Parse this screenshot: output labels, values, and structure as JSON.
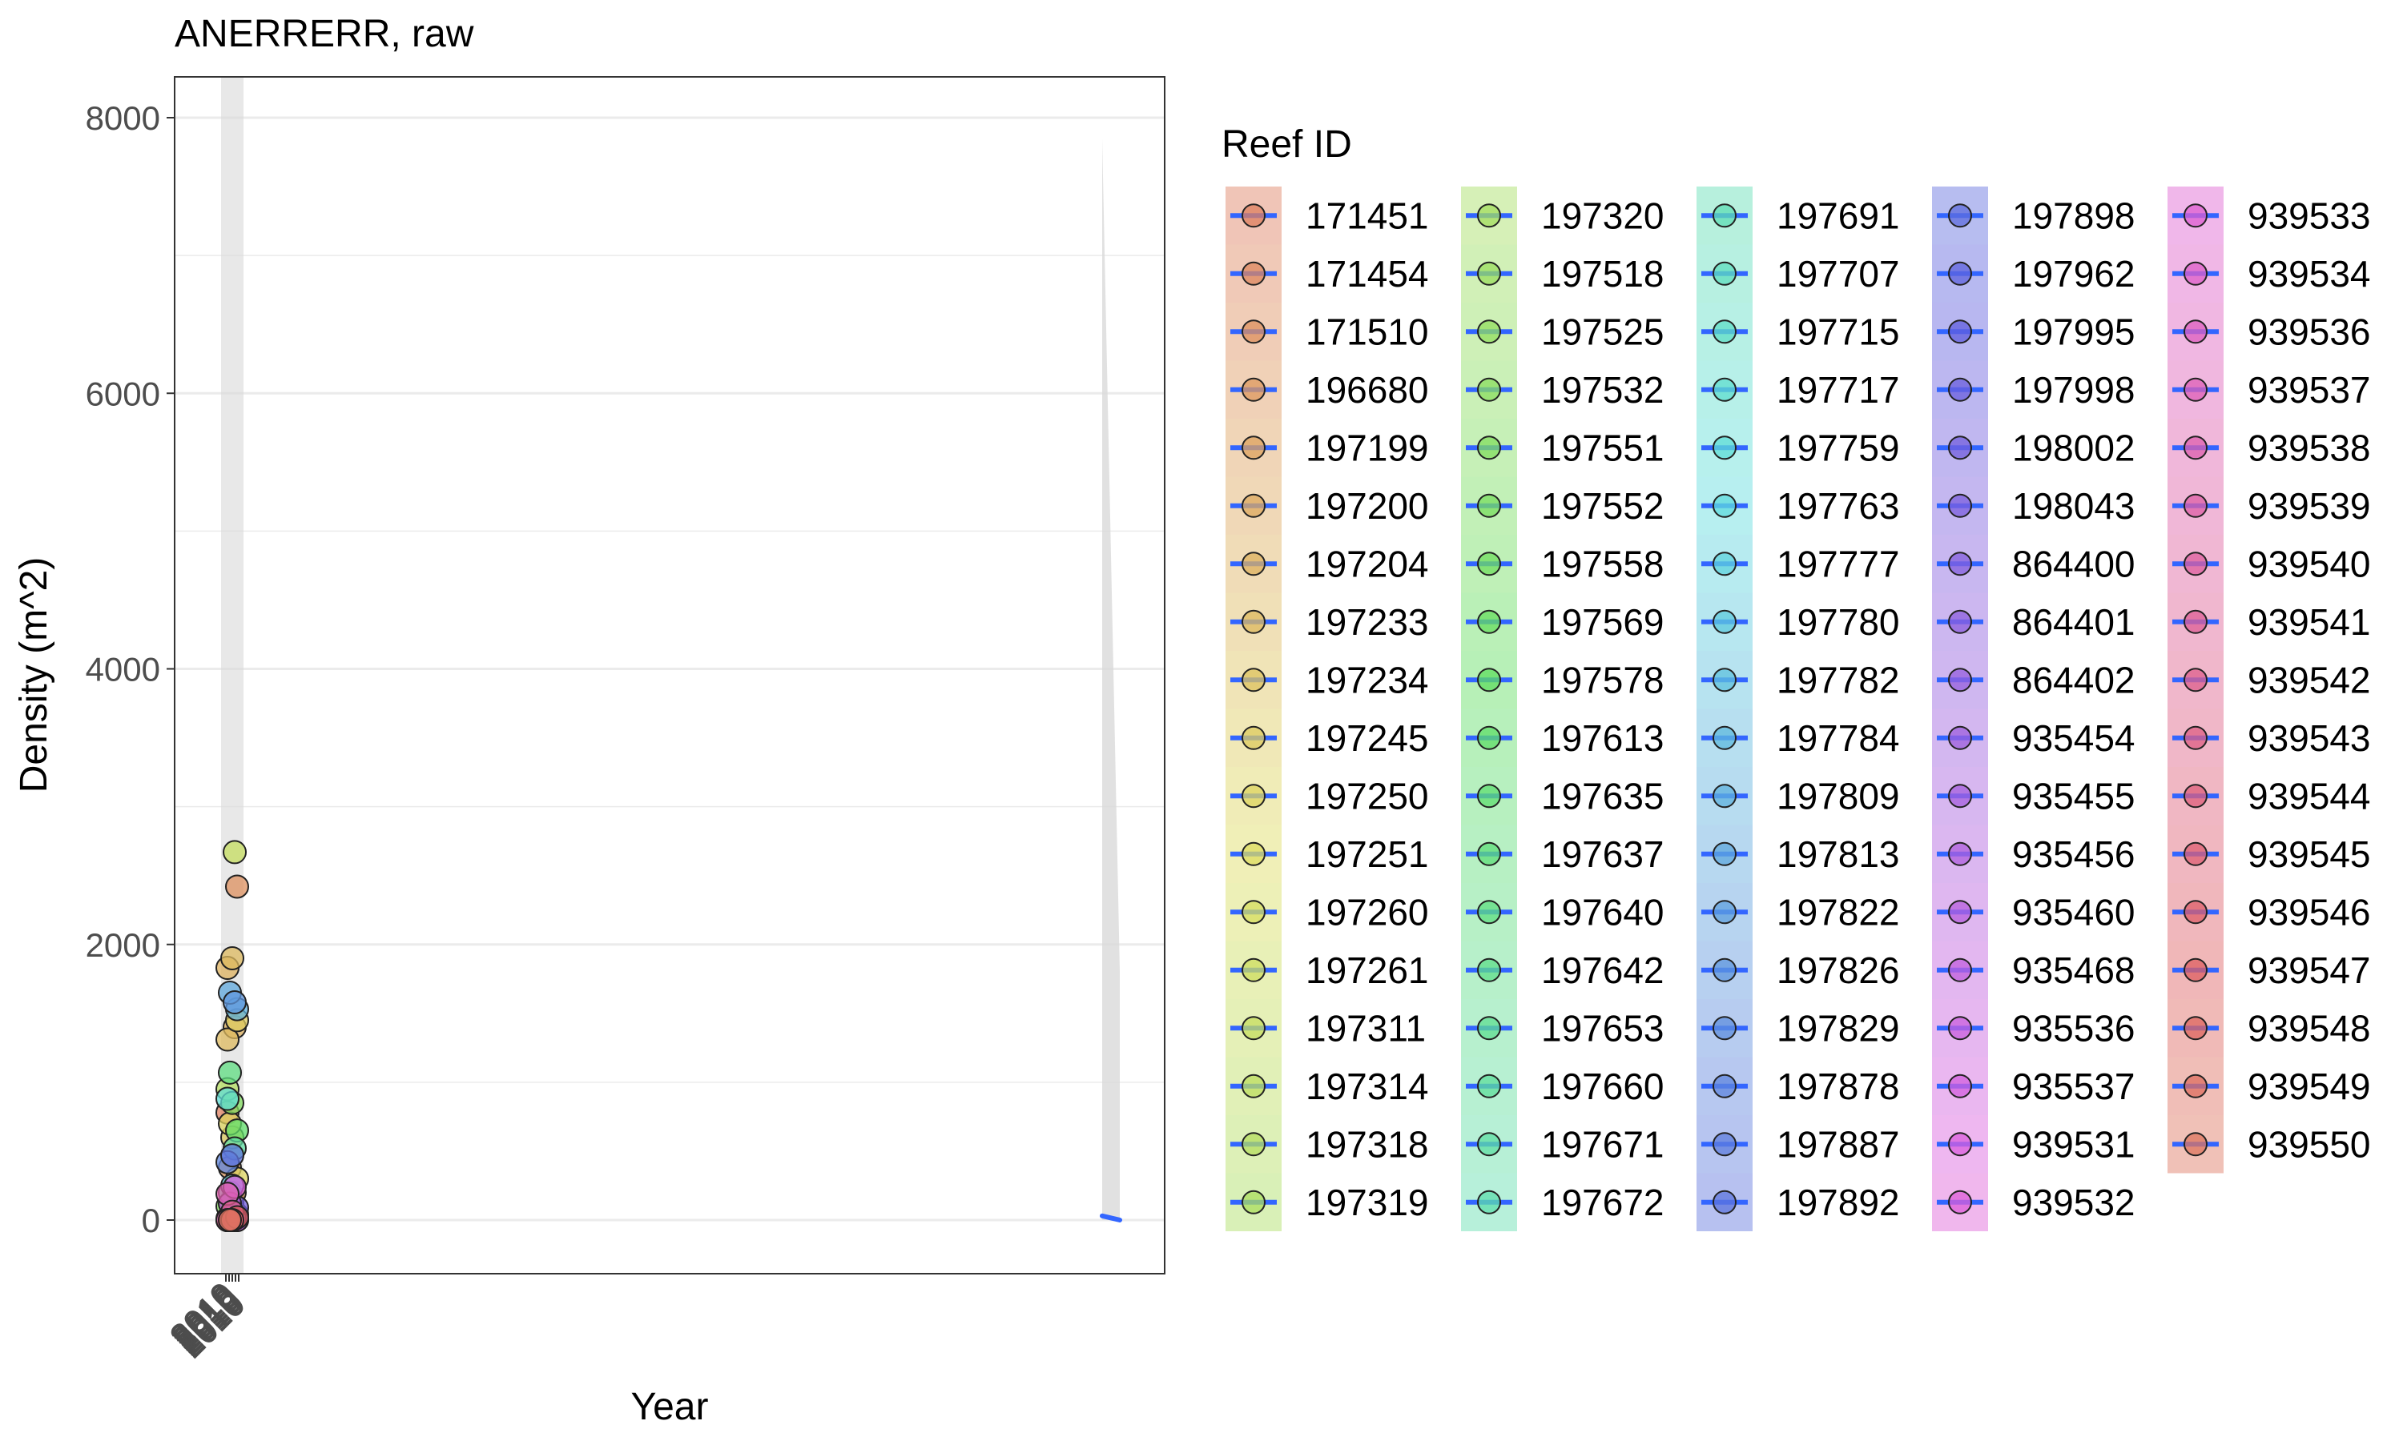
{
  "chart_data": {
    "type": "scatter",
    "title": "ANERRERR, raw",
    "xlabel": "Year",
    "ylabel": "Density (m^2)",
    "ylim": [
      -400,
      8300
    ],
    "y_ticks": [
      0,
      2000,
      4000,
      6000,
      8000
    ],
    "x_tick_label_overlap": "2010",
    "grid": true,
    "legend": {
      "title": "Reef ID",
      "position": "right",
      "entries": [
        "171451",
        "171454",
        "171510",
        "196680",
        "197199",
        "197200",
        "197204",
        "197233",
        "197234",
        "197245",
        "197250",
        "197251",
        "197260",
        "197261",
        "197311",
        "197314",
        "197318",
        "197319",
        "197320",
        "197518",
        "197525",
        "197532",
        "197551",
        "197552",
        "197558",
        "197569",
        "197578",
        "197613",
        "197635",
        "197637",
        "197640",
        "197642",
        "197653",
        "197660",
        "197671",
        "197672",
        "197691",
        "197707",
        "197715",
        "197717",
        "197759",
        "197763",
        "197777",
        "197780",
        "197782",
        "197784",
        "197809",
        "197813",
        "197822",
        "197826",
        "197829",
        "197878",
        "197887",
        "197892",
        "197898",
        "197962",
        "197995",
        "197998",
        "198002",
        "198043",
        "864400",
        "864401",
        "864402",
        "935454",
        "935455",
        "935456",
        "935460",
        "935468",
        "935536",
        "935537",
        "939531",
        "939532",
        "939533",
        "939534",
        "939536",
        "939537",
        "939538",
        "939539",
        "939540",
        "939541",
        "939542",
        "939543",
        "939544",
        "939545",
        "939546",
        "939547",
        "939548",
        "939549",
        "939550"
      ]
    },
    "points_by_reef": [
      {
        "reef": "171451",
        "values": [
          780,
          10,
          0
        ]
      },
      {
        "reef": "171454",
        "values": [
          150,
          0
        ]
      },
      {
        "reef": "171510",
        "values": [
          2420,
          120,
          0
        ]
      },
      {
        "reef": "196680",
        "values": [
          380,
          40
        ]
      },
      {
        "reef": "197199",
        "values": [
          200,
          0
        ]
      },
      {
        "reef": "197204",
        "values": [
          1830,
          1400,
          0
        ]
      },
      {
        "reef": "197233",
        "values": [
          1900,
          1310
        ]
      },
      {
        "reef": "197245",
        "values": [
          1450,
          600,
          0
        ]
      },
      {
        "reef": "197250",
        "values": [
          700,
          300
        ]
      },
      {
        "reef": "197311",
        "values": [
          2670,
          0
        ]
      },
      {
        "reef": "197318",
        "values": [
          950,
          20
        ]
      },
      {
        "reef": "197551",
        "values": [
          850,
          100
        ]
      },
      {
        "reef": "197613",
        "values": [
          650,
          0
        ]
      },
      {
        "reef": "197640",
        "values": [
          1070,
          10
        ]
      },
      {
        "reef": "197671",
        "values": [
          520,
          200
        ]
      },
      {
        "reef": "197759",
        "values": [
          880,
          60
        ]
      },
      {
        "reef": "197780",
        "values": [
          250,
          0
        ]
      },
      {
        "reef": "197809",
        "values": [
          1530,
          40
        ]
      },
      {
        "reef": "197813",
        "values": [
          1650,
          0
        ]
      },
      {
        "reef": "197826",
        "values": [
          1580,
          20
        ]
      },
      {
        "reef": "197878",
        "values": [
          420,
          0
        ]
      },
      {
        "reef": "197892",
        "values": [
          470,
          10
        ]
      },
      {
        "reef": "198002",
        "values": [
          90,
          0
        ]
      },
      {
        "reef": "935468",
        "values": [
          120,
          0
        ]
      },
      {
        "reef": "939531",
        "values": [
          240,
          0
        ]
      },
      {
        "reef": "939538",
        "values": [
          190,
          10
        ]
      },
      {
        "reef": "939542",
        "values": [
          60,
          0
        ]
      },
      {
        "reef": "939546",
        "values": [
          20,
          0
        ]
      },
      {
        "reef": "939550",
        "values": [
          0
        ]
      }
    ],
    "smooth": {
      "color": "#3366FF",
      "ribbon_color": "#D9D9D9",
      "segments": [
        {
          "position": "left",
          "ribbon_lower": -400,
          "ribbon_upper": 8300
        },
        {
          "position": "right",
          "line": [
            30,
            0
          ],
          "ribbon_top": 7850,
          "ribbon_bottom_start": 0
        }
      ]
    }
  }
}
